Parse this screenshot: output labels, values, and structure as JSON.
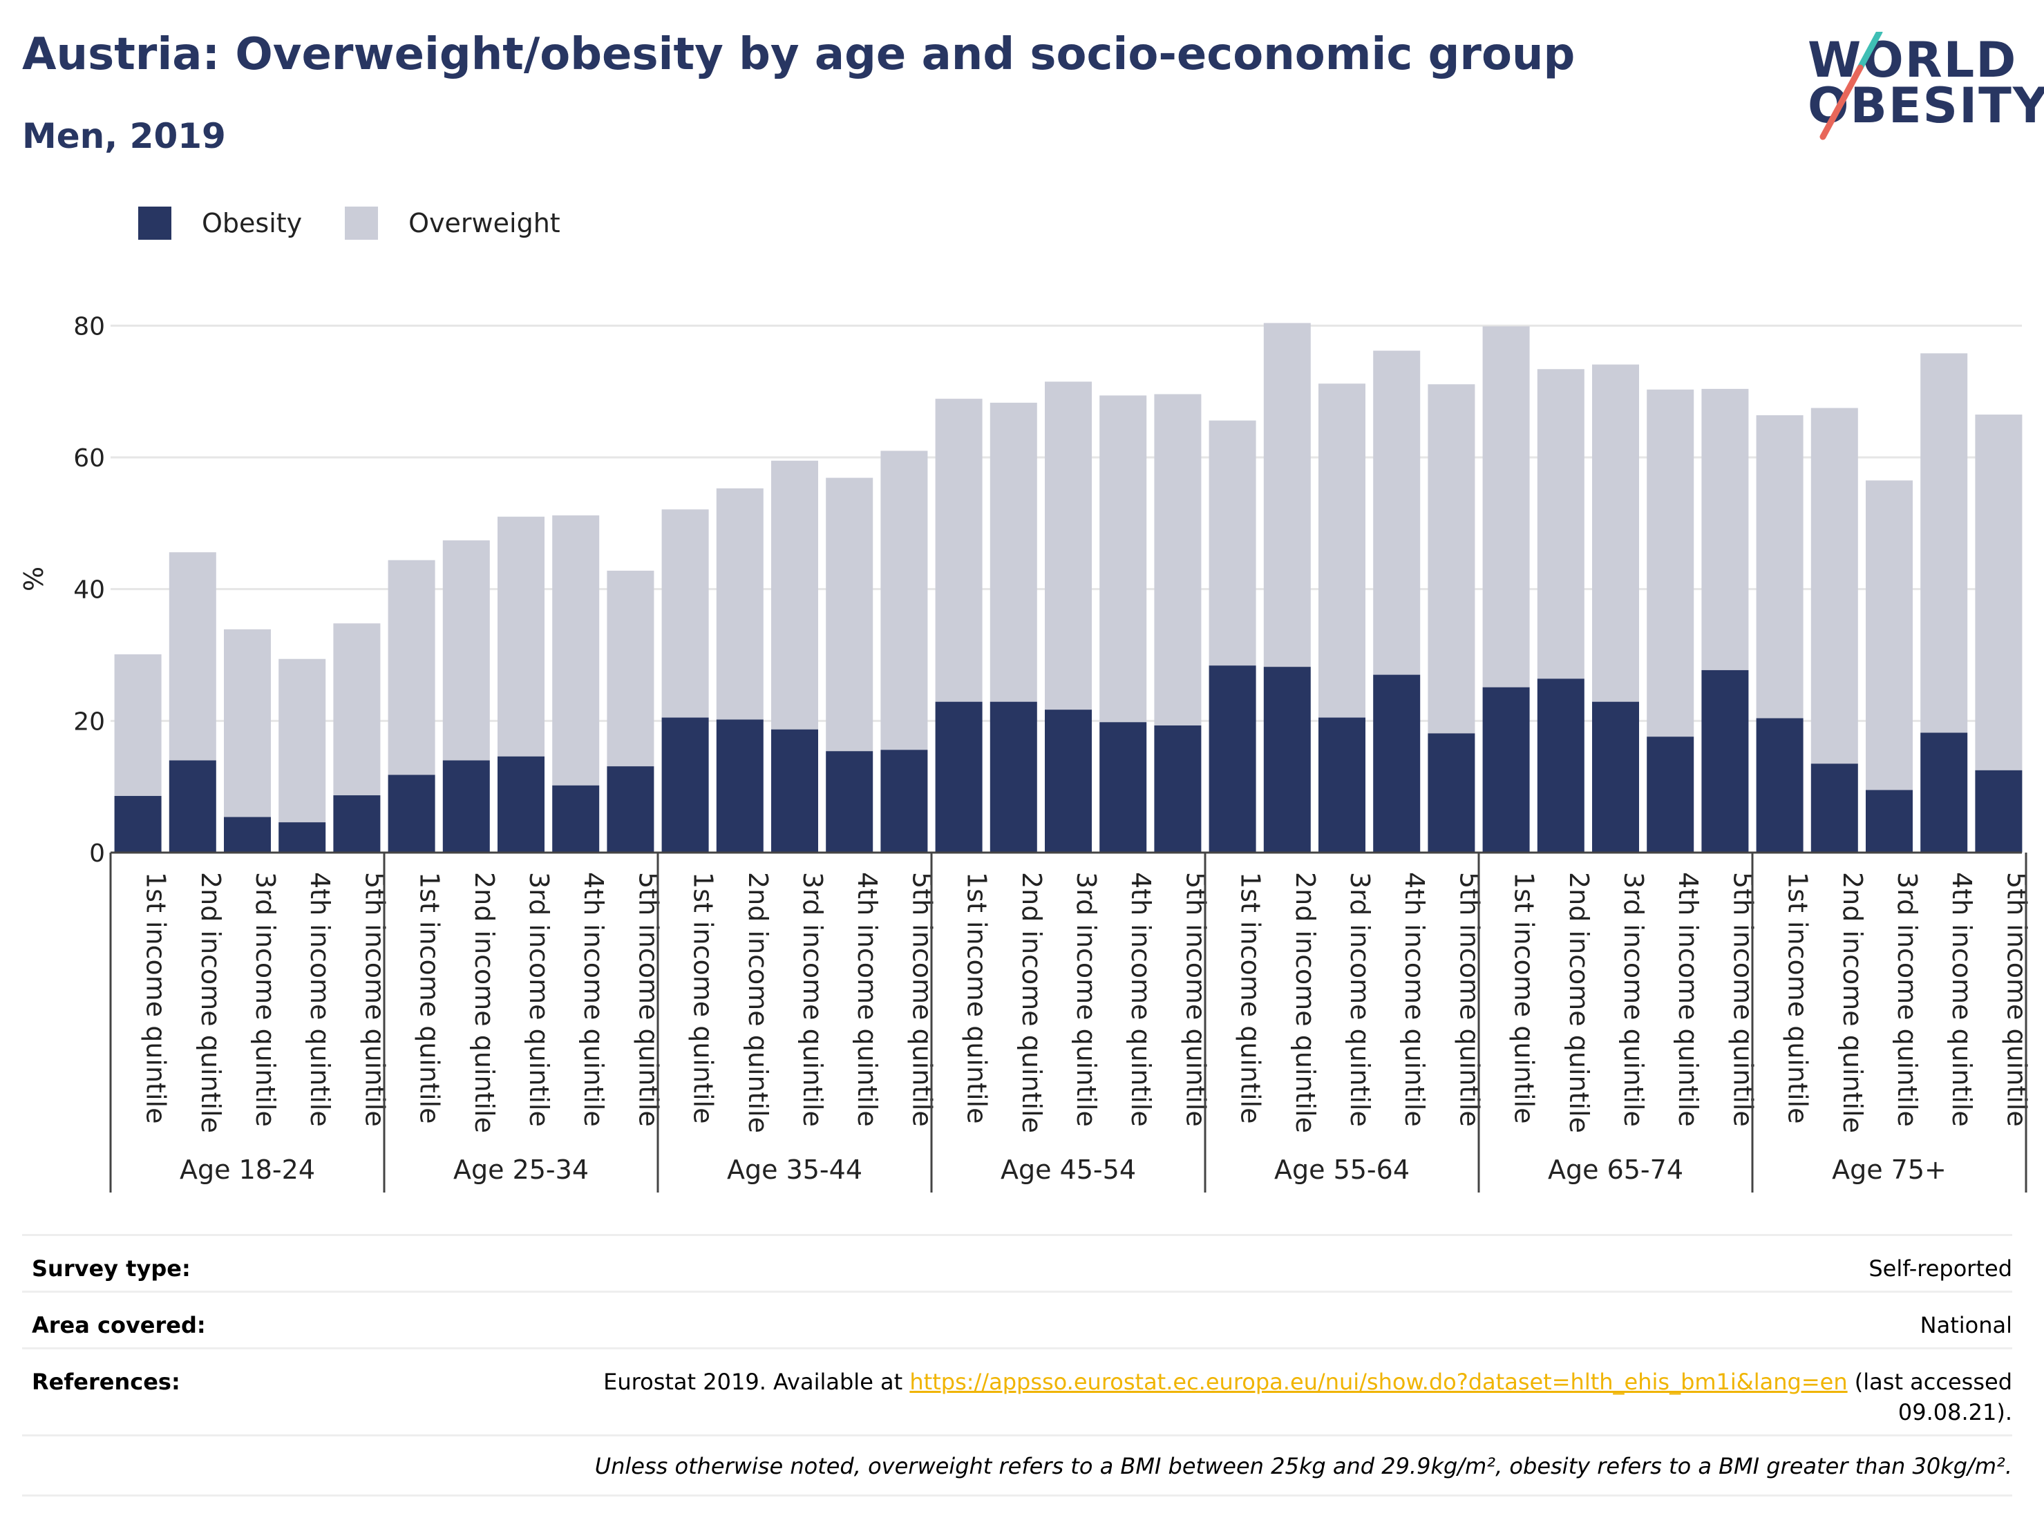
{
  "header": {
    "title": "Austria: Overweight/obesity by age and socio-economic group",
    "subtitle": "Men, 2019",
    "logo_line1": "WORLD",
    "logo_line2": "OBESITY"
  },
  "legend": {
    "obesity_label": "Obesity",
    "overweight_label": "Overweight"
  },
  "colors": {
    "obesity": "#283662",
    "overweight": "#cbcdd8",
    "title": "#283662",
    "link": "#f0b400",
    "logo_slash_top": "#3fbfb5",
    "logo_slash_bottom": "#e8675a"
  },
  "chart_data": {
    "type": "bar",
    "stacked": true,
    "ylabel": "%",
    "ylim": [
      0,
      90
    ],
    "yticks": [
      "0",
      "20",
      "40",
      "60",
      "80"
    ],
    "grid": true,
    "legend_position": "top-left",
    "groups": [
      "Age 18-24",
      "Age 25-34",
      "Age 35-44",
      "Age 45-54",
      "Age 55-64",
      "Age 65-74",
      "Age 75+"
    ],
    "categories": [
      "1st income quintile",
      "2nd income quintile",
      "3rd income quintile",
      "4th income quintile",
      "5th income quintile"
    ],
    "series": [
      {
        "name": "Obesity",
        "values": [
          [
            8.6,
            14.0,
            5.4,
            4.6,
            8.7
          ],
          [
            11.8,
            14.0,
            14.6,
            10.2,
            13.1
          ],
          [
            20.5,
            20.2,
            18.7,
            15.4,
            15.6
          ],
          [
            22.9,
            22.9,
            21.7,
            19.8,
            19.3
          ],
          [
            28.4,
            28.2,
            20.5,
            27.0,
            18.1
          ],
          [
            25.1,
            26.4,
            22.9,
            17.6,
            27.7
          ],
          [
            20.4,
            13.5,
            9.5,
            18.2,
            12.5
          ]
        ]
      },
      {
        "name": "Overweight",
        "values": [
          [
            21.5,
            31.6,
            28.5,
            24.8,
            26.1
          ],
          [
            32.6,
            33.4,
            36.4,
            41.0,
            29.7
          ],
          [
            31.6,
            35.1,
            40.8,
            41.5,
            45.4
          ],
          [
            46.0,
            45.4,
            49.8,
            49.6,
            50.3
          ],
          [
            37.2,
            52.2,
            50.7,
            49.2,
            53.0
          ],
          [
            54.8,
            47.0,
            51.2,
            52.7,
            42.7
          ],
          [
            46.0,
            54.0,
            47.0,
            57.6,
            54.0
          ]
        ]
      }
    ]
  },
  "info": {
    "survey_type_key": "Survey type:",
    "survey_type_val": "Self-reported",
    "area_key": "Area covered:",
    "area_val": "National",
    "references_key": "References:",
    "references_prefix": "Eurostat 2019. Available at",
    "references_link": "https://appsso.eurostat.ec.europa.eu/nui/show.do?dataset=hlth_ehis_bm1i&lang=en",
    "references_suffix": "(last accessed",
    "references_date": "09.08.21).",
    "footnote": "Unless otherwise noted, overweight refers to a BMI between 25kg and 29.9kg/m², obesity refers to a BMI greater than 30kg/m²."
  }
}
